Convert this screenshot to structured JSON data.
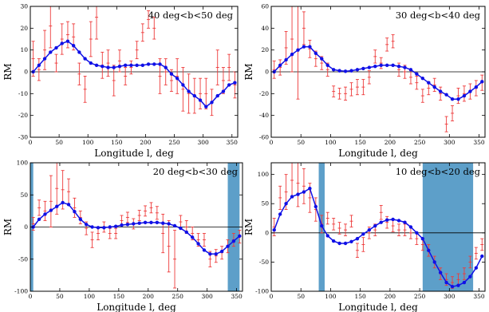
{
  "colors": {
    "model_line": "#1010e6",
    "observed": "#ee3b3b",
    "shaded_region": "#5d9fc9",
    "zero_line": "#000000"
  },
  "chart_data": [
    {
      "type": "line",
      "title": "40 deg<b<50 deg",
      "xlabel": "Longitude l, deg",
      "ylabel": "RM",
      "xlim": [
        0,
        360
      ],
      "ylim": [
        -30,
        30
      ],
      "xticks": [
        0,
        50,
        100,
        150,
        200,
        250,
        300,
        350
      ],
      "yticks": [
        30,
        20,
        10,
        0,
        -10,
        -20,
        -30
      ],
      "legend": "none",
      "series": [
        {
          "kind": "model",
          "x": [
            5,
            15,
            25,
            35,
            45,
            55,
            65,
            75,
            85,
            95,
            105,
            115,
            125,
            135,
            145,
            155,
            165,
            175,
            185,
            195,
            205,
            215,
            225,
            235,
            245,
            255,
            265,
            275,
            285,
            295,
            305,
            315,
            325,
            335,
            345,
            355
          ],
          "y": [
            0,
            3,
            6,
            9,
            11,
            13,
            14,
            12,
            9,
            6,
            4,
            3,
            2.5,
            2,
            2,
            2.5,
            3,
            3,
            3,
            3,
            3.5,
            3.5,
            3.5,
            2,
            -1,
            -3,
            -6,
            -9,
            -11,
            -13,
            -16,
            -14,
            -11,
            -9,
            -6,
            -5
          ]
        },
        {
          "kind": "observed",
          "x": [
            5,
            15,
            25,
            35,
            45,
            55,
            65,
            75,
            85,
            95,
            105,
            115,
            125,
            135,
            145,
            155,
            165,
            175,
            185,
            195,
            205,
            215,
            225,
            235,
            245,
            255,
            265,
            275,
            285,
            295,
            305,
            315,
            325,
            335,
            345,
            355
          ],
          "y": [
            6,
            1,
            10,
            21,
            4,
            15,
            17,
            16,
            -1,
            -8,
            15,
            25,
            3,
            4,
            -4,
            5,
            -2,
            2,
            10,
            18,
            24,
            20,
            -2,
            0,
            -4,
            -2,
            -8,
            -10,
            -11,
            -10,
            -10,
            -14,
            2,
            -4,
            2,
            -6
          ],
          "err": [
            8,
            5,
            9,
            10,
            4,
            7,
            6,
            6,
            5,
            6,
            8,
            10,
            6,
            6,
            7,
            5,
            4,
            3,
            4,
            4,
            4,
            5,
            8,
            6,
            5,
            8,
            10,
            9,
            8,
            7,
            7,
            6,
            8,
            6,
            6,
            6
          ]
        }
      ],
      "shaded_ranges": []
    },
    {
      "type": "line",
      "title": "30 deg<b<40 deg",
      "xlabel": "Longitude l, deg",
      "ylabel": "RM",
      "xlim": [
        0,
        360
      ],
      "ylim": [
        -60,
        60
      ],
      "xticks": [
        0,
        50,
        100,
        150,
        200,
        250,
        300,
        350
      ],
      "yticks": [
        60,
        40,
        20,
        0,
        -20,
        -40,
        -60
      ],
      "legend": "none",
      "series": [
        {
          "kind": "model",
          "x": [
            5,
            15,
            25,
            35,
            45,
            55,
            65,
            75,
            85,
            95,
            105,
            115,
            125,
            135,
            145,
            155,
            165,
            175,
            185,
            195,
            205,
            215,
            225,
            235,
            245,
            255,
            265,
            275,
            285,
            295,
            305,
            315,
            325,
            335,
            345,
            355
          ],
          "y": [
            0,
            6,
            11,
            16,
            20,
            23,
            23,
            17,
            12,
            6,
            2,
            1,
            0.5,
            1,
            2,
            3,
            4,
            5,
            6,
            6,
            6,
            5,
            4,
            2,
            -2,
            -6,
            -10,
            -14,
            -18,
            -21,
            -25,
            -25,
            -22,
            -18,
            -14,
            -9
          ]
        },
        {
          "kind": "observed",
          "x": [
            5,
            15,
            25,
            35,
            45,
            55,
            65,
            75,
            85,
            95,
            105,
            115,
            125,
            135,
            145,
            155,
            165,
            175,
            185,
            195,
            205,
            215,
            225,
            235,
            245,
            255,
            265,
            275,
            285,
            295,
            305,
            315,
            325,
            335,
            345,
            355
          ],
          "y": [
            2,
            4,
            22,
            30,
            20,
            40,
            21,
            12,
            8,
            2,
            -18,
            -20,
            -20,
            -16,
            -14,
            -14,
            -5,
            14,
            8,
            25,
            28,
            2,
            0,
            -5,
            -10,
            -22,
            -15,
            -12,
            -20,
            -48,
            -38,
            -22,
            -20,
            -18,
            -15,
            -10
          ],
          "err": [
            8,
            7,
            15,
            30,
            45,
            15,
            8,
            7,
            6,
            6,
            5,
            5,
            6,
            6,
            7,
            7,
            6,
            6,
            5,
            6,
            6,
            6,
            6,
            6,
            6,
            6,
            6,
            6,
            6,
            7,
            7,
            7,
            7,
            7,
            7,
            7
          ]
        }
      ],
      "shaded_ranges": []
    },
    {
      "type": "line",
      "title": "20 deg<b<30 deg",
      "xlabel": "Longitude l, deg",
      "ylabel": "RM",
      "xlim": [
        0,
        360
      ],
      "ylim": [
        -100,
        100
      ],
      "xticks": [
        0,
        50,
        100,
        150,
        200,
        250,
        300,
        350
      ],
      "yticks": [
        100,
        50,
        0,
        -50,
        -100
      ],
      "legend": "none",
      "series": [
        {
          "kind": "model",
          "x": [
            5,
            15,
            25,
            35,
            45,
            55,
            65,
            75,
            85,
            95,
            105,
            115,
            125,
            135,
            145,
            155,
            165,
            175,
            185,
            195,
            205,
            215,
            225,
            235,
            245,
            255,
            265,
            275,
            285,
            295,
            305,
            315,
            325,
            335,
            345,
            355
          ],
          "y": [
            0,
            12,
            20,
            26,
            32,
            38,
            35,
            24,
            12,
            4,
            0,
            -1,
            -1,
            0,
            1,
            3,
            4,
            5,
            6,
            7,
            7,
            7,
            6,
            5,
            2,
            -2,
            -8,
            -16,
            -26,
            -36,
            -42,
            -42,
            -38,
            -30,
            -22,
            -14
          ]
        },
        {
          "kind": "observed",
          "x": [
            5,
            15,
            25,
            35,
            45,
            55,
            65,
            75,
            85,
            95,
            105,
            115,
            125,
            135,
            145,
            155,
            165,
            175,
            185,
            195,
            205,
            215,
            225,
            235,
            245,
            255,
            265,
            275,
            285,
            295,
            305,
            315,
            325,
            335,
            345,
            355
          ],
          "y": [
            5,
            30,
            25,
            40,
            60,
            58,
            55,
            30,
            15,
            -2,
            -20,
            -10,
            0,
            -10,
            -10,
            10,
            15,
            5,
            18,
            25,
            30,
            22,
            -10,
            -30,
            -50,
            8,
            0,
            -10,
            -20,
            -20,
            -50,
            -45,
            -40,
            -30,
            -20,
            -15
          ],
          "err": [
            10,
            12,
            15,
            40,
            40,
            30,
            20,
            15,
            10,
            10,
            12,
            10,
            8,
            8,
            8,
            8,
            8,
            8,
            8,
            8,
            8,
            10,
            30,
            40,
            45,
            10,
            10,
            10,
            10,
            10,
            12,
            10,
            10,
            10,
            10,
            10
          ]
        }
      ],
      "shaded_ranges": [
        [
          0,
          5
        ],
        [
          335,
          355
        ]
      ]
    },
    {
      "type": "line",
      "title": "10 deg<b<20 deg",
      "xlabel": "Longitude l, deg",
      "ylabel": "RM",
      "xlim": [
        0,
        360
      ],
      "ylim": [
        -100,
        120
      ],
      "xticks": [
        0,
        50,
        100,
        150,
        200,
        250,
        300,
        350
      ],
      "yticks": [
        100,
        50,
        0,
        -50,
        -100
      ],
      "legend": "none",
      "series": [
        {
          "kind": "model",
          "x": [
            5,
            15,
            25,
            35,
            45,
            55,
            65,
            75,
            85,
            95,
            105,
            115,
            125,
            135,
            145,
            155,
            165,
            175,
            185,
            195,
            205,
            215,
            225,
            235,
            245,
            255,
            265,
            275,
            285,
            295,
            305,
            315,
            325,
            335,
            345,
            355
          ],
          "y": [
            5,
            32,
            50,
            62,
            66,
            70,
            76,
            45,
            12,
            -5,
            -14,
            -18,
            -18,
            -15,
            -10,
            -2,
            5,
            12,
            18,
            22,
            23,
            21,
            18,
            10,
            0,
            -10,
            -30,
            -50,
            -68,
            -85,
            -92,
            -90,
            -85,
            -75,
            -60,
            -40
          ]
        },
        {
          "kind": "observed",
          "x": [
            5,
            15,
            25,
            35,
            45,
            55,
            65,
            75,
            85,
            95,
            105,
            115,
            125,
            135,
            145,
            155,
            165,
            175,
            185,
            195,
            205,
            215,
            225,
            235,
            245,
            255,
            265,
            275,
            285,
            295,
            305,
            315,
            325,
            335,
            345,
            355
          ],
          "y": [
            10,
            60,
            70,
            90,
            85,
            80,
            60,
            40,
            15,
            25,
            15,
            8,
            5,
            20,
            -30,
            -20,
            0,
            5,
            35,
            18,
            12,
            5,
            5,
            0,
            -10,
            -20,
            -30,
            -50,
            -70,
            -80,
            -85,
            -80,
            -70,
            -50,
            -35,
            -20
          ],
          "err": [
            15,
            20,
            30,
            30,
            40,
            30,
            25,
            20,
            15,
            10,
            10,
            10,
            10,
            10,
            12,
            12,
            10,
            10,
            12,
            10,
            10,
            10,
            10,
            10,
            10,
            10,
            10,
            10,
            10,
            10,
            10,
            10,
            10,
            10,
            10,
            10
          ]
        }
      ],
      "shaded_ranges": [
        [
          80,
          90
        ],
        [
          255,
          340
        ]
      ]
    }
  ]
}
